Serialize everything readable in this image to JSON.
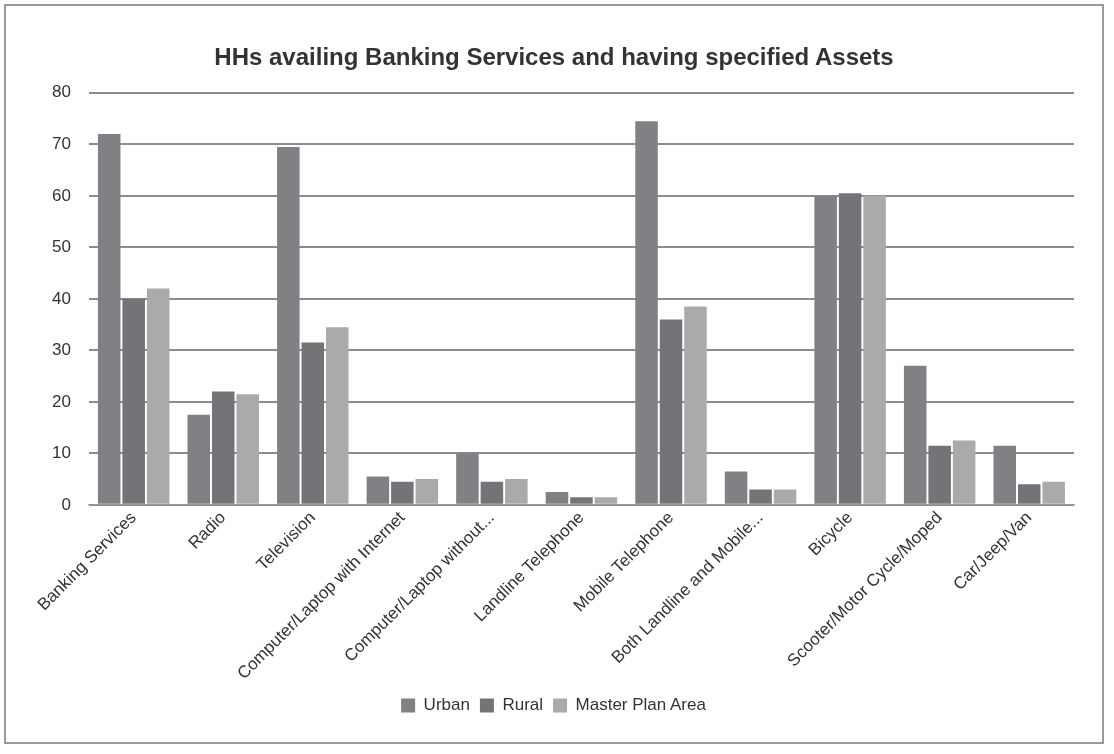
{
  "chart_data": {
    "type": "bar",
    "title": "HHs availing Banking Services and having specified Assets",
    "categories": [
      "Banking Services",
      "Radio",
      "Television",
      "Computer/Laptop with Internet",
      "Computer/Laptop without...",
      "Landline Telephone",
      "Mobile Telephone",
      "Both Landline and Mobile...",
      "Bicycle",
      "Scooter/Motor Cycle/Moped",
      "Car/Jeep/Van"
    ],
    "series": [
      {
        "name": "Urban",
        "color": "#808184",
        "values": [
          72,
          17.5,
          69.5,
          5.5,
          10,
          2.5,
          74.5,
          6.5,
          60,
          27,
          11.5
        ]
      },
      {
        "name": "Rural",
        "color": "#737477",
        "values": [
          40,
          22,
          31.5,
          4.5,
          4.5,
          1.5,
          36,
          3,
          60.5,
          11.5,
          4
        ]
      },
      {
        "name": "Master Plan Area",
        "color": "#a9aaac",
        "values": [
          42,
          21.5,
          34.5,
          5,
          5,
          1.5,
          38.5,
          3,
          60,
          12.5,
          4.5
        ]
      }
    ],
    "ylim": [
      0,
      80
    ],
    "yticks": [
      0,
      10,
      20,
      30,
      40,
      50,
      60,
      70,
      80
    ],
    "grid": "y",
    "legend": "bottom"
  }
}
